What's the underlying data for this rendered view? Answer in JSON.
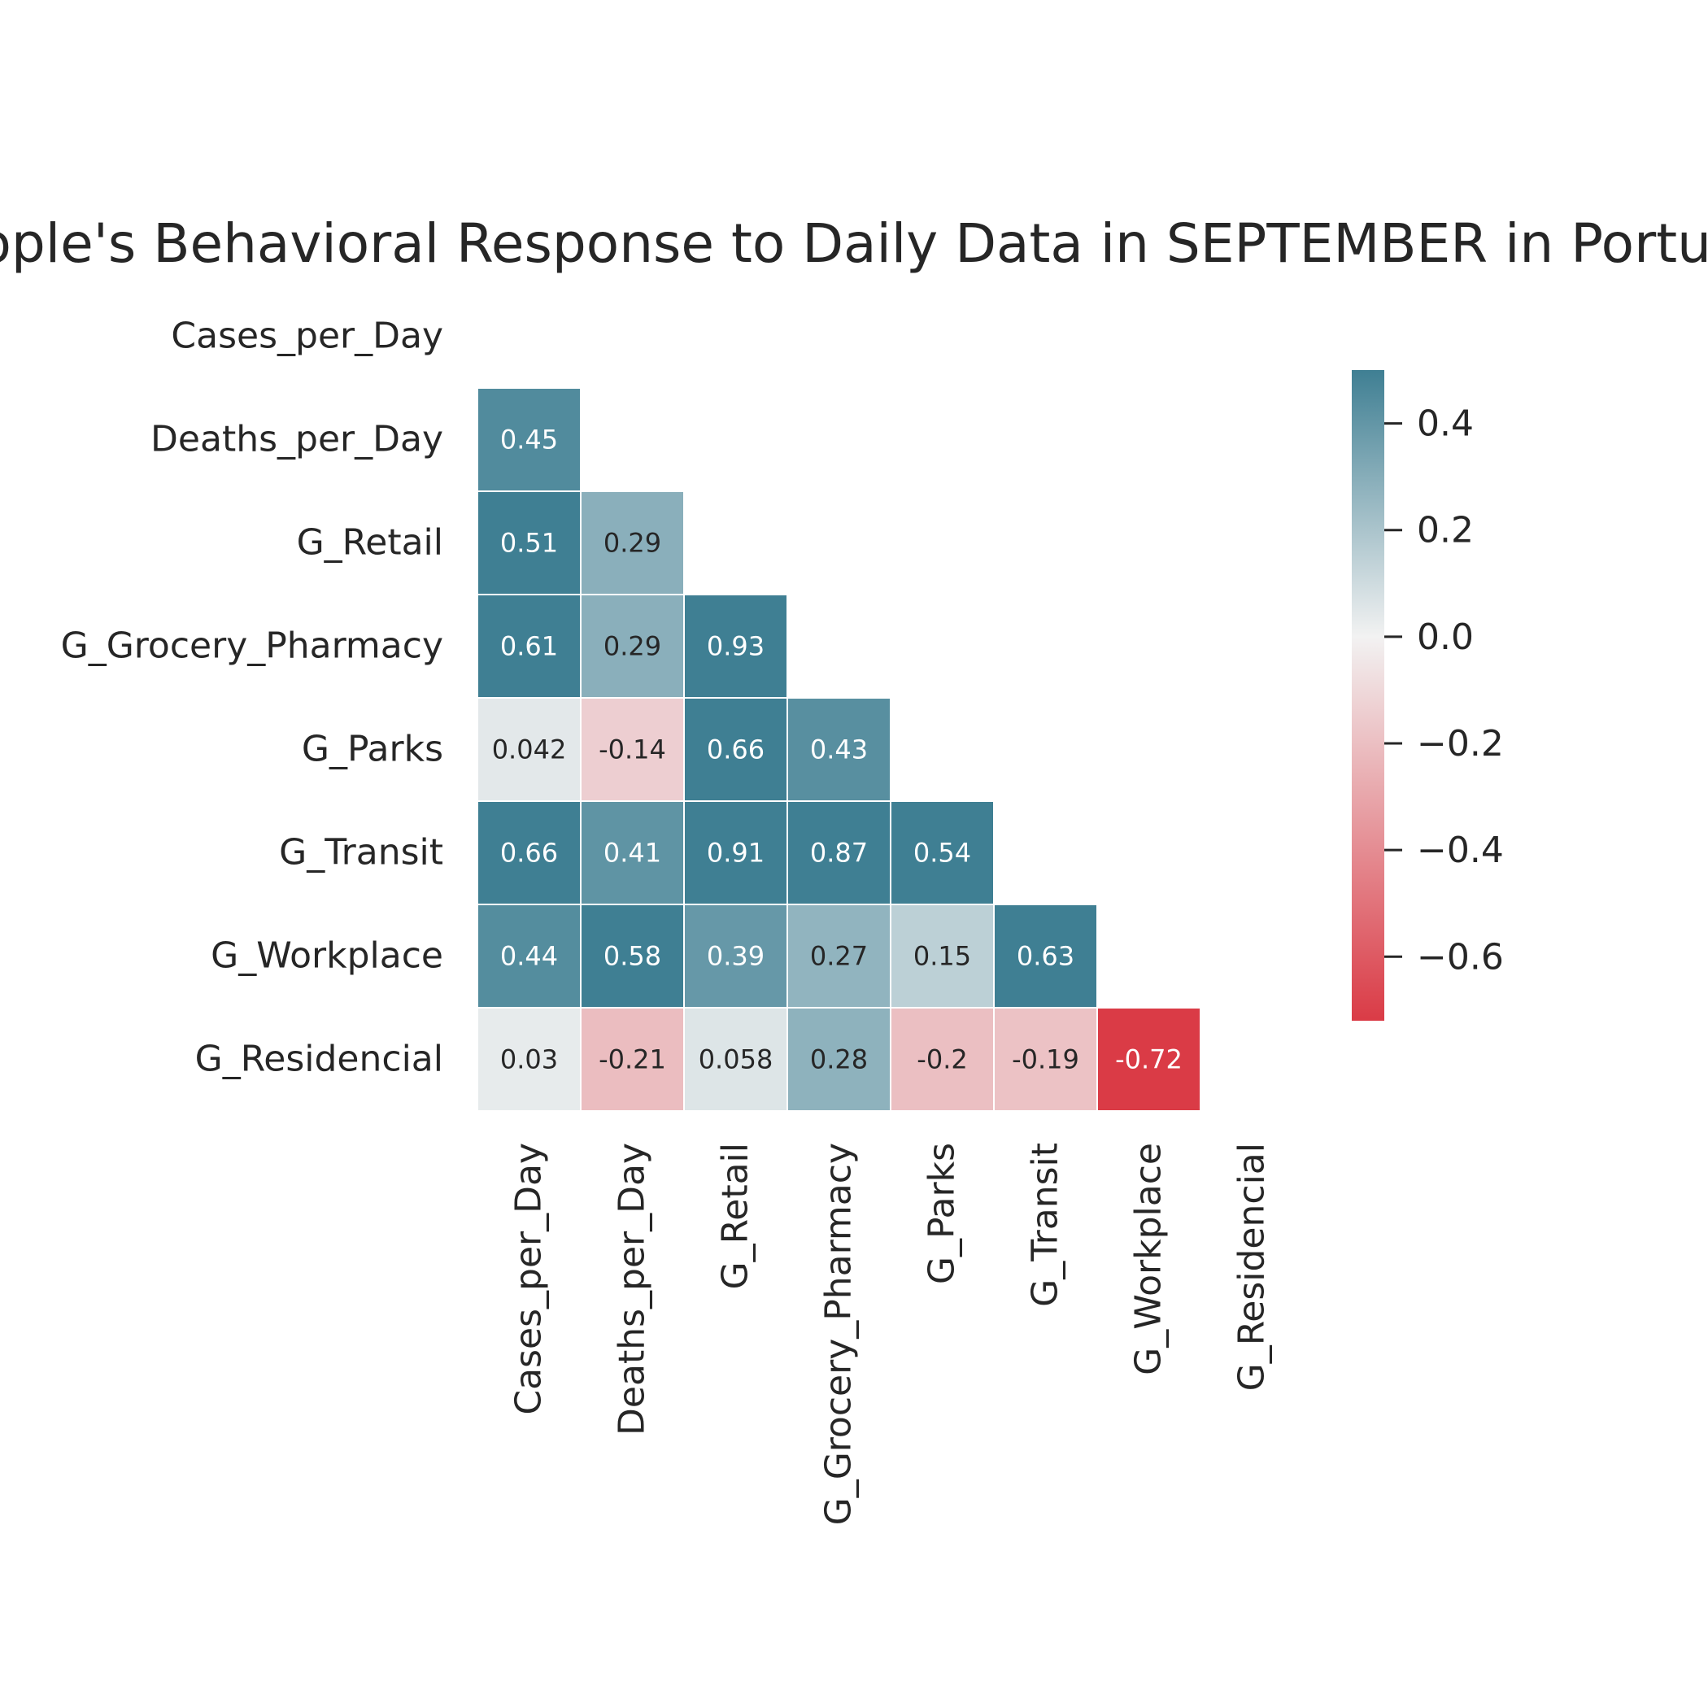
{
  "chart_data": {
    "type": "heatmap",
    "title": "People's Behavioral Response to Daily Data in SEPTEMBER in Portugal",
    "labels": [
      "Cases_per_Day",
      "Deaths_per_Day",
      "G_Retail",
      "G_Grocery_Pharmacy",
      "G_Parks",
      "G_Transit",
      "G_Workplace",
      "G_Residencial"
    ],
    "matrix": [
      [
        null,
        null,
        null,
        null,
        null,
        null,
        null,
        null
      ],
      [
        0.45,
        null,
        null,
        null,
        null,
        null,
        null,
        null
      ],
      [
        0.51,
        0.29,
        null,
        null,
        null,
        null,
        null,
        null
      ],
      [
        0.61,
        0.29,
        0.93,
        null,
        null,
        null,
        null,
        null
      ],
      [
        0.042,
        -0.14,
        0.66,
        0.43,
        null,
        null,
        null,
        null
      ],
      [
        0.66,
        0.41,
        0.91,
        0.87,
        0.54,
        null,
        null,
        null
      ],
      [
        0.44,
        0.58,
        0.39,
        0.27,
        0.15,
        0.63,
        null,
        null
      ],
      [
        0.03,
        -0.21,
        0.058,
        0.28,
        -0.2,
        -0.19,
        -0.72,
        null
      ]
    ],
    "cell_text": [
      [
        null,
        null,
        null,
        null,
        null,
        null,
        null,
        null
      ],
      [
        "0.45",
        null,
        null,
        null,
        null,
        null,
        null,
        null
      ],
      [
        "0.51",
        "0.29",
        null,
        null,
        null,
        null,
        null,
        null
      ],
      [
        "0.61",
        "0.29",
        "0.93",
        null,
        null,
        null,
        null,
        null
      ],
      [
        "0.042",
        "-0.14",
        "0.66",
        "0.43",
        null,
        null,
        null,
        null
      ],
      [
        "0.66",
        "0.41",
        "0.91",
        "0.87",
        "0.54",
        null,
        null,
        null
      ],
      [
        "0.44",
        "0.58",
        "0.39",
        "0.27",
        "0.15",
        "0.63",
        null,
        null
      ],
      [
        "0.03",
        "-0.21",
        "0.058",
        "0.28",
        "-0.2",
        "-0.19",
        "-0.72",
        null
      ]
    ],
    "mask": "upper-triangle",
    "colorbar": {
      "vmin": -0.72,
      "vmax": 0.5,
      "ticks": [
        0.4,
        0.2,
        0.0,
        -0.2,
        -0.4,
        -0.6
      ],
      "tick_labels": [
        "0.4",
        "0.2",
        "0.0",
        "−0.2",
        "−0.4",
        "−0.6"
      ],
      "placement": "right"
    },
    "colors": {
      "negative": "#da3b46",
      "center": "#f2f2f2",
      "positive": "#3f7f93",
      "gridline": "#ffffff",
      "text_dark": "#262626",
      "text_light": "#ffffff"
    }
  }
}
